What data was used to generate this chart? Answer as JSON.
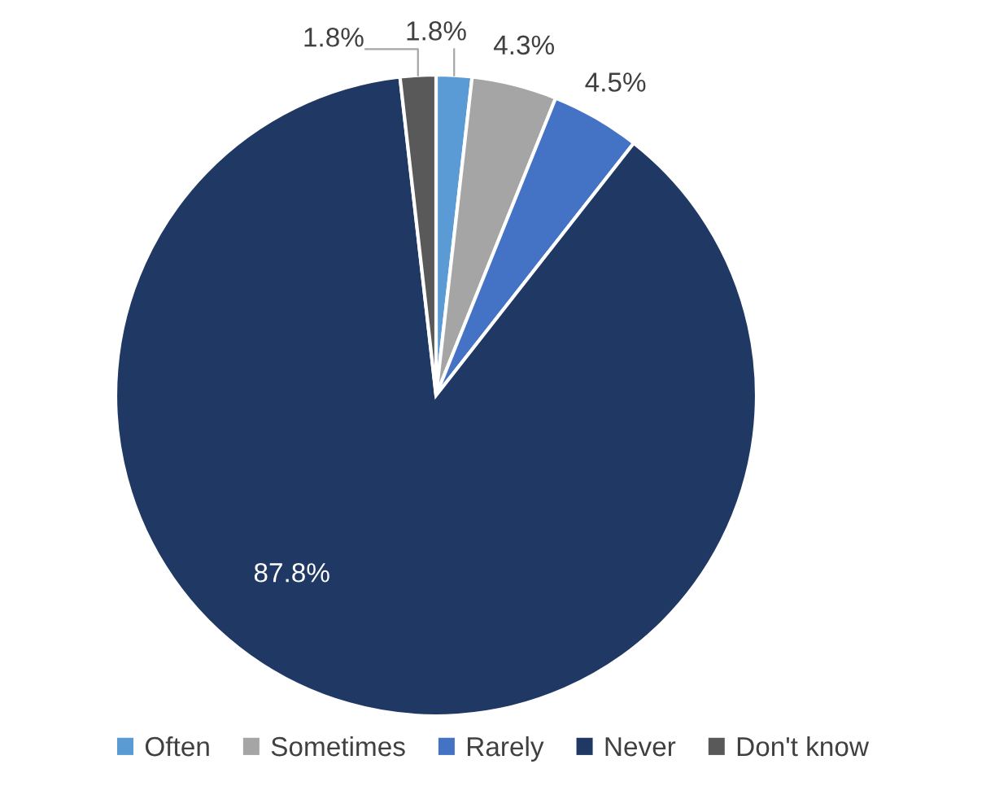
{
  "chart_data": {
    "type": "pie",
    "categories": [
      "Often",
      "Sometimes",
      "Rarely",
      "Never",
      "Don't know"
    ],
    "values": [
      1.8,
      4.3,
      4.5,
      87.8,
      1.8
    ],
    "colors": [
      "#5b9bd5",
      "#a5a5a5",
      "#4472c4",
      "#203864",
      "#595959"
    ],
    "value_labels": [
      "1.8%",
      "4.3%",
      "4.5%",
      "87.8%",
      "1.8%"
    ],
    "legend": "bottom"
  }
}
